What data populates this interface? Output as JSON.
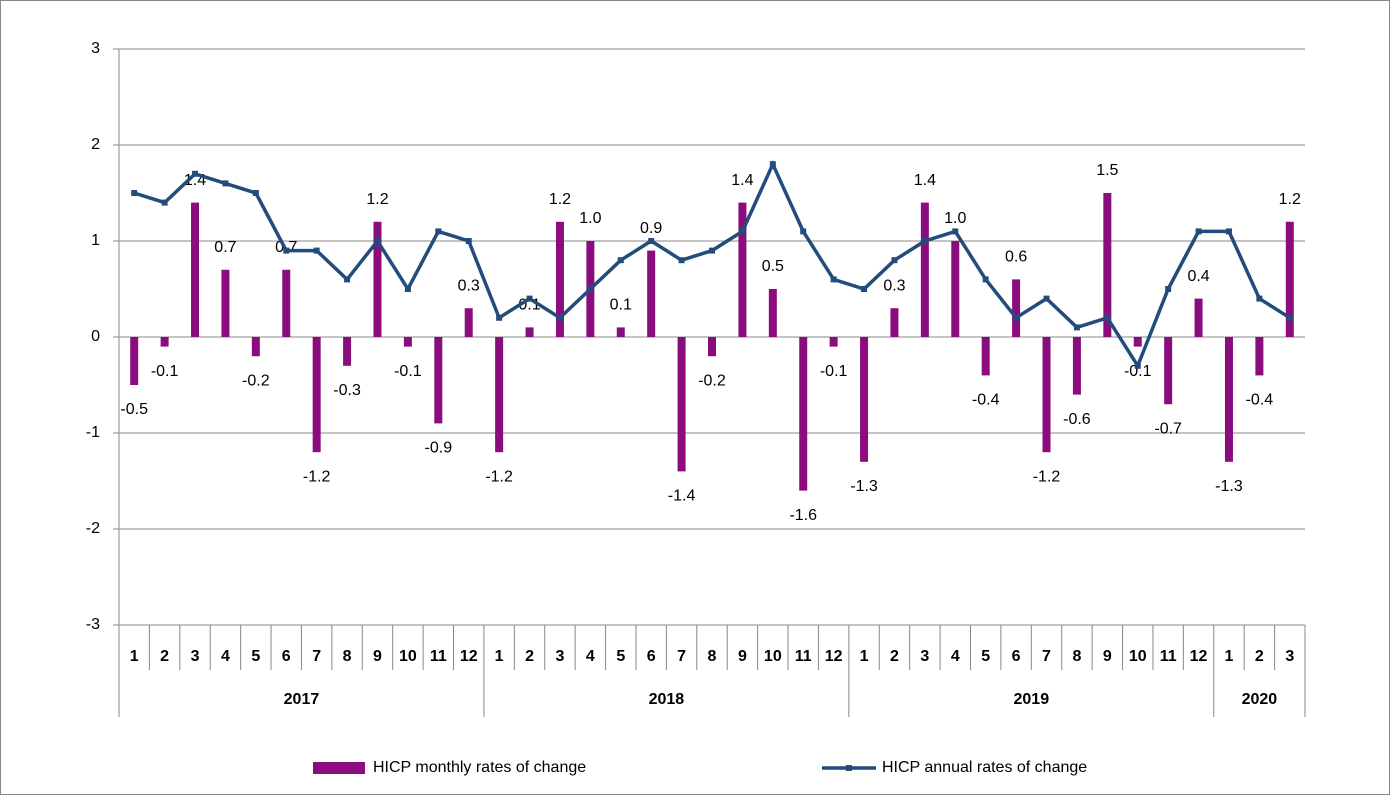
{
  "chart_data": {
    "type": "bar",
    "categories": [
      "1",
      "2",
      "3",
      "4",
      "5",
      "6",
      "7",
      "8",
      "9",
      "10",
      "11",
      "12",
      "1",
      "2",
      "3",
      "4",
      "5",
      "6",
      "7",
      "8",
      "9",
      "10",
      "11",
      "12",
      "1",
      "2",
      "3",
      "4",
      "5",
      "6",
      "7",
      "8",
      "9",
      "10",
      "11",
      "12",
      "1",
      "2",
      "3"
    ],
    "category_groups": [
      "2017",
      "2018",
      "2019",
      "2020"
    ],
    "series": [
      {
        "name": "HICP monthly rates of change",
        "type": "bar",
        "color": "#8b0c7e",
        "values": [
          -0.5,
          -0.1,
          1.4,
          0.7,
          -0.2,
          0.7,
          -1.2,
          -0.3,
          1.2,
          -0.1,
          -0.9,
          0.3,
          -1.2,
          0.1,
          1.2,
          1.0,
          0.1,
          0.9,
          -1.4,
          -0.2,
          1.4,
          0.5,
          -1.6,
          -0.1,
          -1.3,
          0.3,
          1.4,
          1.0,
          -0.4,
          0.6,
          -1.2,
          -0.6,
          1.5,
          -0.1,
          -0.7,
          0.4,
          -1.3,
          -0.4,
          1.2
        ],
        "value_labels": [
          "-0.5",
          "-0.1",
          "1.4",
          "0.7",
          "-0.2",
          "0.7",
          "-1.2",
          "-0.3",
          "1.2",
          "-0.1",
          "-0.9",
          "0.3",
          "-1.2",
          "0.1",
          "1.2",
          "1.0",
          "0.1",
          "0.9",
          "-1.4",
          "-0.2",
          "1.4",
          "0.5",
          "-1.6",
          "-0.1",
          "-1.3",
          "0.3",
          "1.4",
          "1.0",
          "-0.4",
          "0.6",
          "-1.2",
          "-0.6",
          "1.5",
          "-0.1",
          "-0.7",
          "0.4",
          "-1.3",
          "-0.4",
          "1.2"
        ]
      },
      {
        "name": "HICP annual rates of change",
        "type": "line",
        "color": "#234c7c",
        "values": [
          1.5,
          1.4,
          1.7,
          1.6,
          1.5,
          0.9,
          0.9,
          0.6,
          1.0,
          0.5,
          1.1,
          1.0,
          0.2,
          0.4,
          0.2,
          0.5,
          0.8,
          1.0,
          0.8,
          0.9,
          1.1,
          1.8,
          1.1,
          0.6,
          0.5,
          0.8,
          1.0,
          1.1,
          0.6,
          0.2,
          0.4,
          0.1,
          0.2,
          -0.3,
          0.5,
          1.1,
          1.1,
          0.4,
          0.2
        ]
      }
    ],
    "ylim": [
      -3,
      3
    ],
    "yticks": [
      3,
      2,
      1,
      0,
      -1,
      -2,
      -3
    ],
    "grid": true,
    "legend": "bottom"
  }
}
